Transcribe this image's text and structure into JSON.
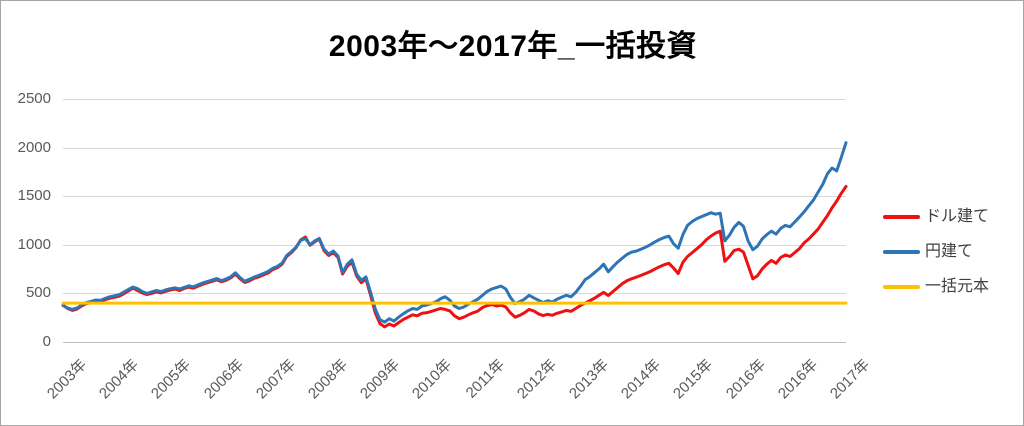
{
  "title": "2003年～2017年_一括投資",
  "legend": [
    {
      "label": "ドル建て",
      "color": "#ee1111"
    },
    {
      "label": "円建て",
      "color": "#2e75b6"
    },
    {
      "label": "一括元本",
      "color": "#ffc000"
    }
  ],
  "chart_data": {
    "type": "line",
    "title": "2003年～2017年_一括投資",
    "xlabel": "",
    "ylabel": "",
    "ylim": [
      0,
      2500
    ],
    "y_ticks": [
      0,
      500,
      1000,
      1500,
      2000,
      2500
    ],
    "x_tick_labels": [
      "2003年",
      "2004年",
      "2005年",
      "2006年",
      "2007年",
      "2008年",
      "2009年",
      "2010年",
      "2011年",
      "2012年",
      "2013年",
      "2014年",
      "2015年",
      "2016年",
      "2016年",
      "2017年"
    ],
    "grid": true,
    "gridline_color": "#d9d9d9",
    "axis_color": "#bfbfbf",
    "tick_label_color": "#595959",
    "legend_position": "right",
    "series": [
      {
        "name": "ドル建て",
        "color": "#ee1111",
        "values": [
          380,
          345,
          325,
          340,
          370,
          395,
          405,
          420,
          415,
          435,
          450,
          460,
          470,
          495,
          525,
          555,
          530,
          505,
          488,
          500,
          515,
          505,
          520,
          535,
          545,
          530,
          550,
          565,
          555,
          575,
          595,
          610,
          625,
          640,
          620,
          635,
          660,
          700,
          650,
          612,
          630,
          655,
          670,
          690,
          710,
          745,
          765,
          800,
          880,
          920,
          970,
          1050,
          1080,
          995,
          1030,
          1060,
          940,
          890,
          920,
          870,
          700,
          780,
          820,
          680,
          610,
          650,
          480,
          300,
          190,
          155,
          185,
          165,
          200,
          230,
          255,
          280,
          270,
          295,
          300,
          315,
          330,
          345,
          335,
          320,
          270,
          240,
          255,
          280,
          300,
          318,
          355,
          375,
          385,
          370,
          380,
          360,
          300,
          255,
          275,
          300,
          335,
          320,
          290,
          272,
          285,
          275,
          295,
          310,
          325,
          315,
          345,
          375,
          400,
          425,
          450,
          480,
          510,
          478,
          520,
          560,
          600,
          630,
          650,
          668,
          685,
          705,
          725,
          750,
          775,
          795,
          810,
          760,
          705,
          820,
          880,
          920,
          960,
          1000,
          1050,
          1090,
          1120,
          1140,
          830,
          880,
          940,
          955,
          925,
          790,
          650,
          680,
          750,
          800,
          840,
          810,
          870,
          895,
          880,
          920,
          960,
          1020,
          1060,
          1110,
          1160,
          1230,
          1300,
          1380,
          1450,
          1530,
          1600
        ]
      },
      {
        "name": "円建て",
        "color": "#2e75b6",
        "values": [
          375,
          350,
          335,
          350,
          380,
          405,
          418,
          432,
          428,
          448,
          465,
          475,
          485,
          512,
          540,
          565,
          548,
          520,
          500,
          515,
          530,
          520,
          535,
          548,
          558,
          545,
          562,
          578,
          568,
          588,
          608,
          622,
          638,
          652,
          632,
          648,
          672,
          712,
          662,
          625,
          645,
          668,
          685,
          705,
          725,
          758,
          778,
          812,
          890,
          930,
          975,
          1045,
          1065,
          1000,
          1040,
          1065,
          955,
          905,
          935,
          885,
          715,
          800,
          845,
          700,
          635,
          670,
          510,
          340,
          230,
          205,
          240,
          215,
          255,
          290,
          320,
          345,
          335,
          370,
          380,
          395,
          415,
          445,
          465,
          430,
          370,
          345,
          360,
          390,
          415,
          440,
          480,
          520,
          545,
          560,
          575,
          545,
          460,
          395,
          415,
          440,
          480,
          455,
          430,
          405,
          425,
          410,
          440,
          462,
          480,
          465,
          510,
          570,
          640,
          672,
          712,
          752,
          800,
          722,
          775,
          822,
          862,
          900,
          925,
          935,
          955,
          975,
          1000,
          1030,
          1055,
          1075,
          1090,
          1010,
          965,
          1105,
          1200,
          1240,
          1270,
          1290,
          1310,
          1330,
          1315,
          1325,
          1040,
          1100,
          1180,
          1230,
          1190,
          1040,
          950,
          985,
          1060,
          1105,
          1140,
          1110,
          1170,
          1200,
          1185,
          1235,
          1285,
          1340,
          1400,
          1460,
          1540,
          1620,
          1730,
          1790,
          1760,
          1900,
          2050
        ]
      },
      {
        "name": "一括元本",
        "color": "#ffc000",
        "constant_value": 400
      }
    ]
  }
}
